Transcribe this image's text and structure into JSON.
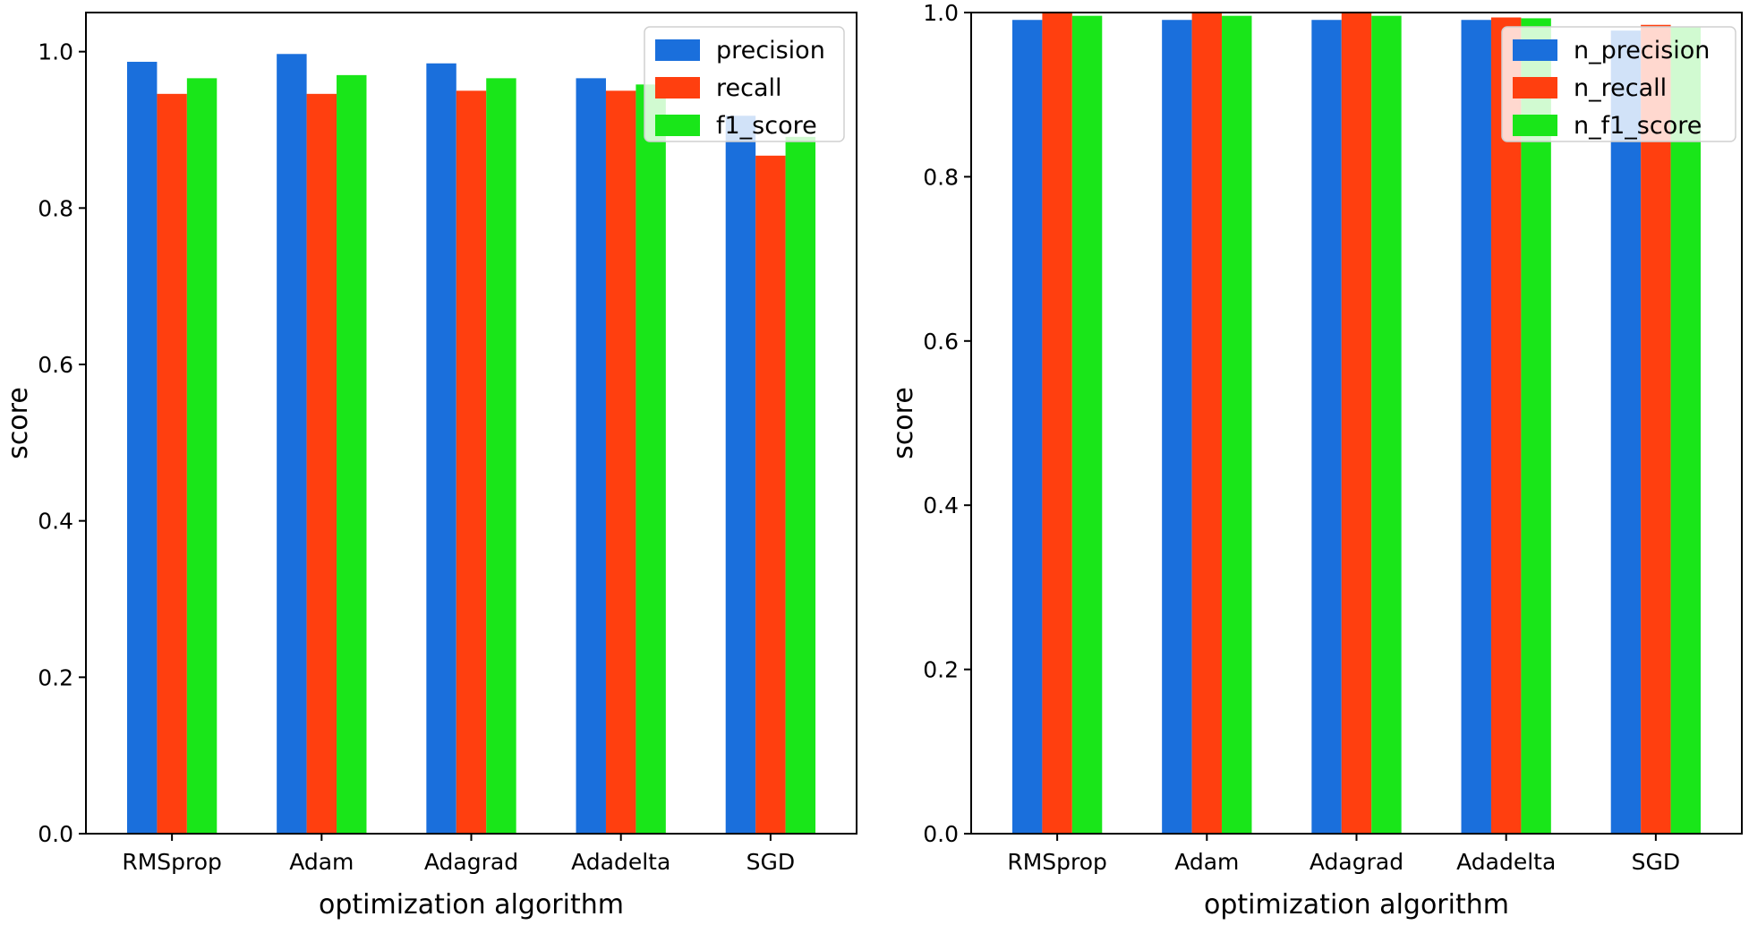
{
  "chart_data": [
    {
      "type": "bar",
      "categories": [
        "RMSprop",
        "Adam",
        "Adagrad",
        "Adadelta",
        "SGD"
      ],
      "series": [
        {
          "name": "precision",
          "color": "#1a6fdc",
          "values": [
            0.987,
            0.997,
            0.985,
            0.966,
            0.918
          ]
        },
        {
          "name": "recall",
          "color": "#ff3f0f",
          "values": [
            0.946,
            0.946,
            0.95,
            0.95,
            0.867
          ]
        },
        {
          "name": "f1_score",
          "color": "#19e619",
          "values": [
            0.966,
            0.97,
            0.966,
            0.958,
            0.891
          ]
        }
      ],
      "xlabel": "optimization algorithm",
      "ylabel": "score",
      "ylim": [
        0,
        1.05
      ],
      "yticks": [
        "0.0",
        "0.2",
        "0.4",
        "0.6",
        "0.8",
        "1.0"
      ],
      "legend_position": "top-right",
      "grid": false
    },
    {
      "type": "bar",
      "categories": [
        "RMSprop",
        "Adam",
        "Adagrad",
        "Adadelta",
        "SGD"
      ],
      "series": [
        {
          "name": "n_precision",
          "color": "#1a6fdc",
          "values": [
            0.991,
            0.991,
            0.991,
            0.991,
            0.978
          ]
        },
        {
          "name": "n_recall",
          "color": "#ff3f0f",
          "values": [
            1.0,
            1.0,
            1.0,
            0.994,
            0.985
          ]
        },
        {
          "name": "n_f1_score",
          "color": "#19e619",
          "values": [
            0.996,
            0.996,
            0.996,
            0.993,
            0.982
          ]
        }
      ],
      "xlabel": "optimization algorithm",
      "ylabel": "score",
      "ylim": [
        0,
        1.0
      ],
      "yticks": [
        "0.0",
        "0.2",
        "0.4",
        "0.6",
        "0.8",
        "1.0"
      ],
      "legend_position": "top-right",
      "grid": false
    }
  ]
}
